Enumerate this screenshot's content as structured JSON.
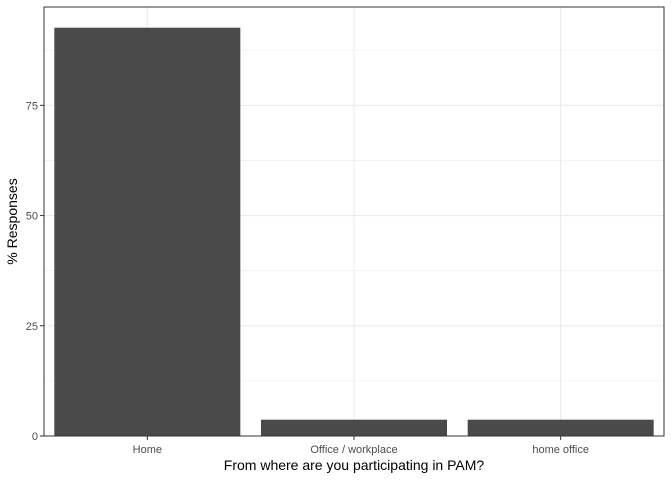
{
  "chart_data": {
    "type": "bar",
    "categories": [
      "Home",
      "Office / workplace",
      "home office"
    ],
    "values": [
      92.6,
      3.7,
      3.7
    ],
    "xlabel": "From where are you participating in PAM?",
    "ylabel": "% Responses",
    "ylim": [
      0,
      97.3
    ],
    "yticks": [
      0,
      25,
      50,
      75
    ],
    "ytick_labels": [
      "0",
      "25",
      "50",
      "75"
    ],
    "grid": true,
    "legend": "none",
    "colors": {
      "bar": "#4a4a4a",
      "grid": "#ebebeb",
      "panel_border": "#333333",
      "background": "#ffffff"
    }
  }
}
